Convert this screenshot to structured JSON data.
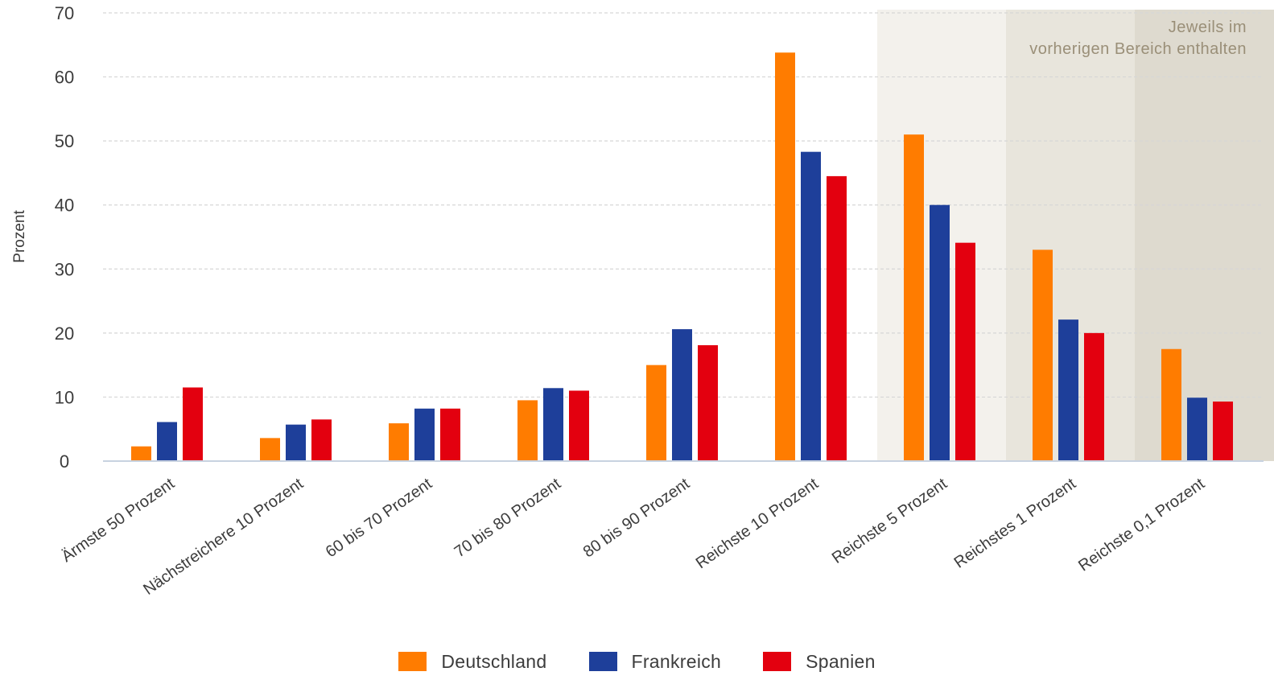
{
  "chart_data": {
    "type": "bar",
    "ylabel": "Prozent",
    "xlabel": "",
    "ylim": [
      0,
      70
    ],
    "yticks": [
      0,
      10,
      20,
      30,
      40,
      50,
      60,
      70
    ],
    "grid": true,
    "legend_position": "bottom",
    "categories": [
      "Ärmste 50 Prozent",
      "Nächstreichere 10 Prozent",
      "60 bis 70 Prozent",
      "70 bis 80 Prozent",
      "80 bis 90 Prozent",
      "Reichste 10 Prozent",
      "Reichste 5 Prozent",
      "Reichstes 1 Prozent",
      "Reichste 0,1 Prozent"
    ],
    "series": [
      {
        "name": "Deutschland",
        "color": "#ff7c00",
        "values": [
          2.3,
          3.6,
          5.9,
          9.5,
          15,
          63.8,
          51,
          33,
          17.5
        ]
      },
      {
        "name": "Frankreich",
        "color": "#1e3f9a",
        "values": [
          6.1,
          5.7,
          8.2,
          11.4,
          20.6,
          48.3,
          40,
          22.1,
          9.9
        ]
      },
      {
        "name": "Spanien",
        "color": "#e3000f",
        "values": [
          11.5,
          6.5,
          8.2,
          11,
          18.1,
          44.5,
          34.1,
          20,
          9.3
        ]
      }
    ],
    "annotation": {
      "lines": [
        "Jeweils im",
        "vorherigen Bereich enthalten"
      ],
      "shaded_from_category": 6,
      "shade_colors": [
        "#f3f1ec",
        "#e8e5dc",
        "#dedacf"
      ],
      "text_color": "#9a8f78"
    },
    "colors": {
      "grid": "#d6d6d6",
      "axis": "#c8d2e0",
      "tick_text": "#3c3c3c"
    }
  }
}
